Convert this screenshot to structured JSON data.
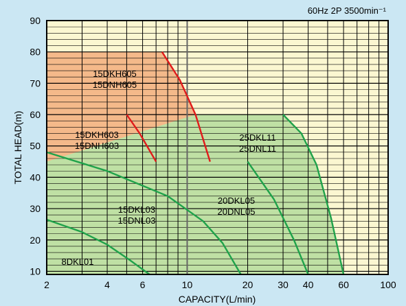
{
  "chart_data": {
    "type": "line",
    "title": "60Hz 2P 3500min⁻¹",
    "xlabel": "CAPACITY(L/min)",
    "ylabel": "TOTAL HEAD(m)",
    "x_scale": "log",
    "xlim": [
      2,
      100
    ],
    "ylim": [
      9,
      90
    ],
    "x_ticks": [
      2,
      4,
      6,
      10,
      20,
      30,
      40,
      60,
      100
    ],
    "y_ticks": [
      10,
      20,
      30,
      40,
      50,
      60,
      70,
      80,
      90
    ],
    "grid": true,
    "colors": {
      "background": "#cbe7f3",
      "plot": "#fbf7d1",
      "region_orange": "#f4b98a",
      "region_green": "#bfe0a4",
      "red": "#e01b1b",
      "green": "#1fa24a"
    },
    "series": [
      {
        "name": "15DKH605\n15DNH605",
        "color": "red",
        "labels": [
          "15DKH605",
          "15DNH605"
        ],
        "x": [
          7.5,
          9.2,
          11,
          13
        ],
        "y": [
          80,
          71,
          60,
          45
        ]
      },
      {
        "name": "15DKH603\n15DNH603",
        "color": "red",
        "labels": [
          "15DKH603",
          "15DNH603"
        ],
        "x": [
          5,
          5.8,
          7
        ],
        "y": [
          60,
          54,
          45
        ]
      },
      {
        "name": "25DKL11\n25DNL11",
        "color": "green",
        "labels": [
          "25DKL11",
          "25DNL11"
        ],
        "x": [
          30,
          37,
          44,
          52,
          60
        ],
        "y": [
          60,
          54,
          44,
          27,
          9
        ]
      },
      {
        "name": "20DKL05\n20DNL05",
        "color": "green",
        "labels": [
          "20DKL05",
          "20DNL05"
        ],
        "x": [
          20,
          27,
          34,
          40
        ],
        "y": [
          45,
          33,
          20,
          9
        ]
      },
      {
        "name": "15DKL03\n15DNL03",
        "color": "green",
        "labels": [
          "15DKL03",
          "15DNL03"
        ],
        "x": [
          2,
          4,
          8,
          12,
          15,
          18.5
        ],
        "y": [
          48,
          42,
          34,
          26,
          19,
          9
        ]
      },
      {
        "name": "8DKL01",
        "color": "green",
        "labels": [
          "8DKL01"
        ],
        "x": [
          2,
          3,
          4,
          5.2,
          6.5
        ],
        "y": [
          26.5,
          22.5,
          18.5,
          13.5,
          9
        ]
      }
    ],
    "regions": [
      {
        "color": "orange",
        "x": [
          2,
          7.5,
          9.2,
          11,
          13,
          2
        ],
        "y": [
          80,
          80,
          71,
          60,
          45,
          45
        ]
      },
      {
        "color": "green",
        "x": [
          2,
          11,
          30,
          37,
          44,
          52,
          60,
          2
        ],
        "y": [
          45,
          60,
          60,
          54,
          44,
          27,
          9,
          9
        ]
      }
    ]
  }
}
